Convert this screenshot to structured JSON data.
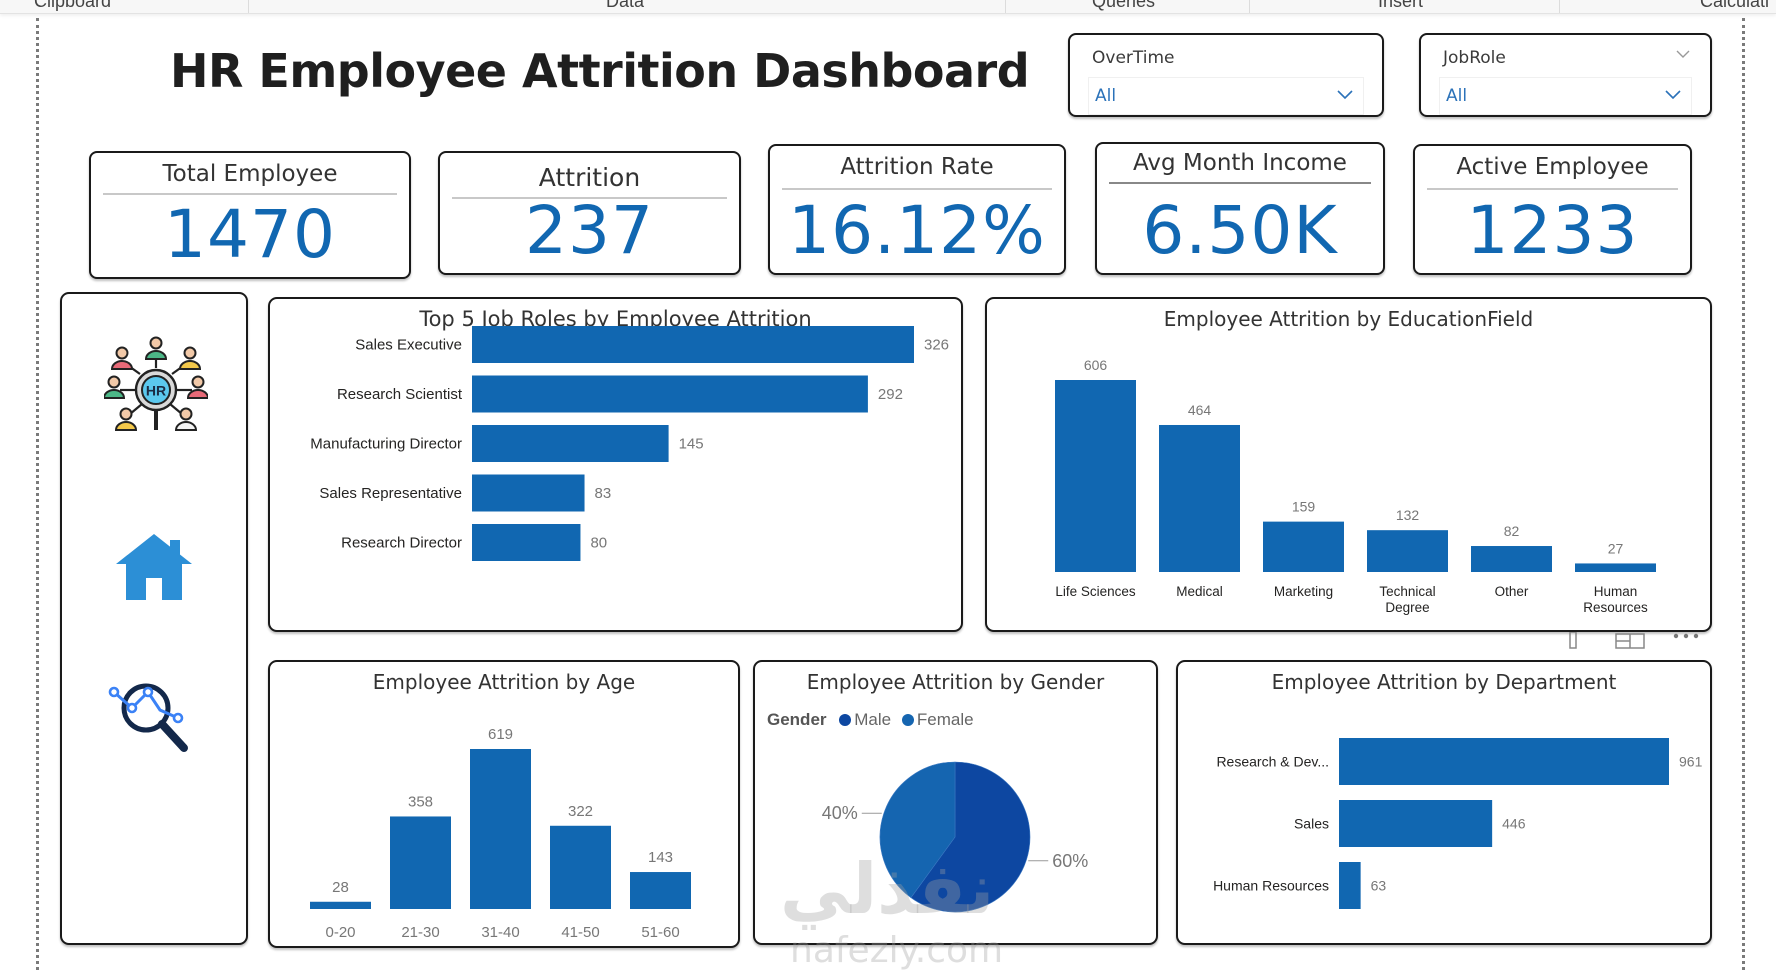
{
  "ribbon": {
    "groups": [
      "Clipboard",
      "Data",
      "Queries",
      "Insert",
      "Calculati"
    ]
  },
  "title": "HR Employee Attrition Dashboard",
  "slicers": [
    {
      "label": "OverTime",
      "value": "All"
    },
    {
      "label": "JobRole",
      "value": "All"
    }
  ],
  "kpis": [
    {
      "label": "Total Employee",
      "value": "1470"
    },
    {
      "label": "Attrition",
      "value": "237"
    },
    {
      "label": "Attrition Rate",
      "value": "16.12%"
    },
    {
      "label": "Avg Month Income",
      "value": "6.50K"
    },
    {
      "label": "Active Employee",
      "value": "1233"
    }
  ],
  "sidebar": {
    "items": [
      {
        "icon": "hr-network-icon",
        "text": "HR"
      },
      {
        "icon": "home-icon"
      },
      {
        "icon": "analytics-search-icon"
      }
    ]
  },
  "colors": {
    "bar": "#1167b1",
    "male": "#0d47a1",
    "female": "#1565b0",
    "accent": "#1167b1",
    "slicer_value": "#2b72b9"
  },
  "watermark": {
    "arabic": "نفذلي",
    "latin": "nafezly.com"
  },
  "chart_data": [
    {
      "id": "job_roles",
      "type": "bar",
      "orientation": "horizontal",
      "title": "Top 5 Job Roles by Employee Attrition",
      "categories": [
        "Sales Executive",
        "Research Scientist",
        "Manufacturing Director",
        "Sales Representative",
        "Research Director"
      ],
      "values": [
        326,
        292,
        145,
        83,
        80
      ],
      "data_labels": true,
      "grid": false
    },
    {
      "id": "education",
      "type": "bar",
      "orientation": "vertical",
      "title": "Employee Attrition by EducationField",
      "categories": [
        "Life Sciences",
        "Medical",
        "Marketing",
        "Technical Degree",
        "Other",
        "Human Resources"
      ],
      "category_lines": [
        [
          "Life Sciences"
        ],
        [
          "Medical"
        ],
        [
          "Marketing"
        ],
        [
          "Technical",
          "Degree"
        ],
        [
          "Other"
        ],
        [
          "Human",
          "Resources"
        ]
      ],
      "values": [
        606,
        464,
        159,
        132,
        82,
        27
      ],
      "data_labels": true,
      "grid": false
    },
    {
      "id": "age",
      "type": "bar",
      "orientation": "vertical",
      "title": "Employee Attrition by Age",
      "categories": [
        "0-20",
        "21-30",
        "31-40",
        "41-50",
        "51-60"
      ],
      "values": [
        28,
        358,
        619,
        322,
        143
      ],
      "data_labels": true,
      "grid": false
    },
    {
      "id": "gender",
      "type": "pie",
      "title": "Employee Attrition by Gender",
      "legend_title": "Gender",
      "legend_position": "top-left",
      "categories": [
        "Male",
        "Female"
      ],
      "values": [
        60,
        40
      ],
      "labels": [
        "60%",
        "40%"
      ]
    },
    {
      "id": "department",
      "type": "bar",
      "orientation": "horizontal",
      "title": "Employee Attrition by Department",
      "categories": [
        "Research & Dev...",
        "Sales",
        "Human Resources"
      ],
      "values": [
        961,
        446,
        63
      ],
      "data_labels": true,
      "grid": false
    }
  ]
}
